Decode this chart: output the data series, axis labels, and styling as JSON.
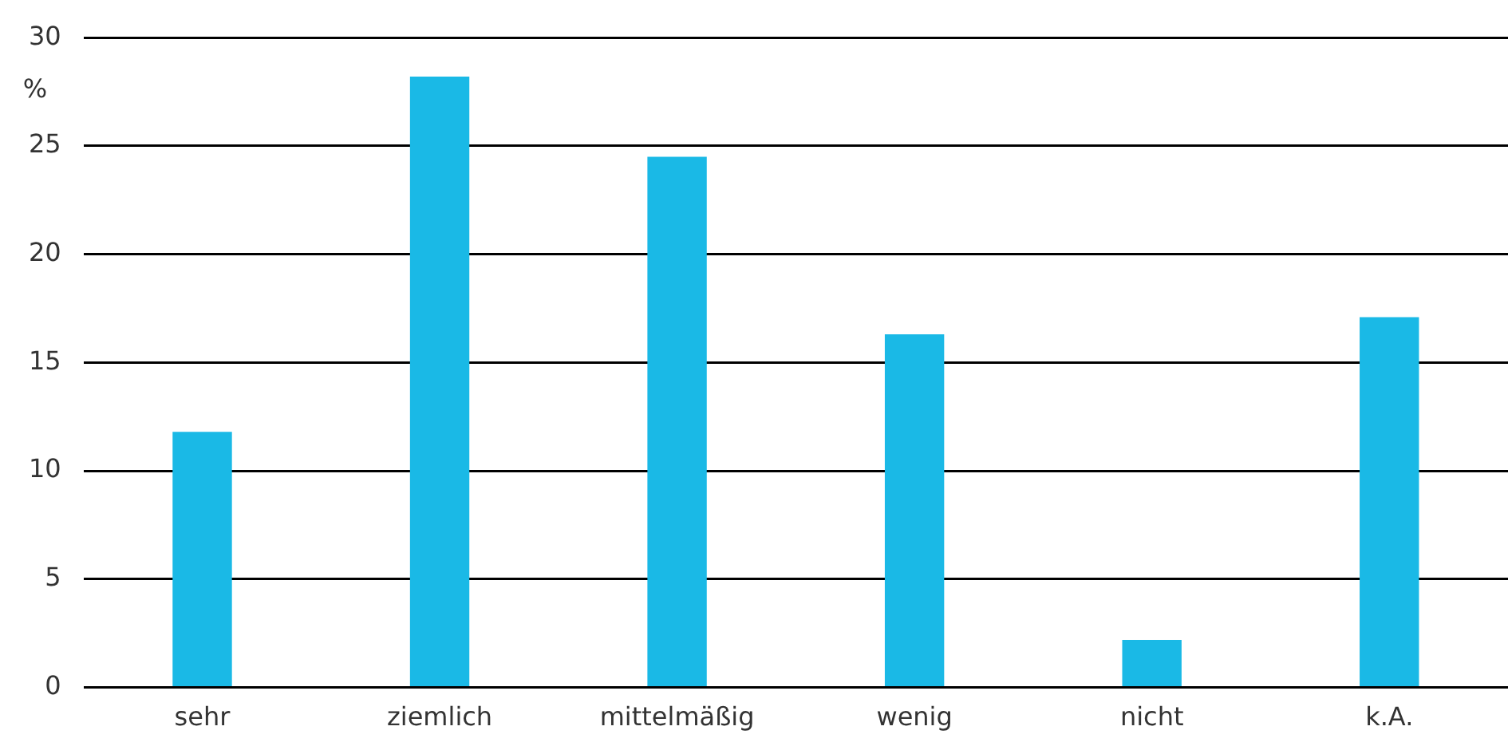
{
  "chart_data": {
    "type": "bar",
    "ylabel": "%",
    "categories": [
      "sehr",
      "ziemlich",
      "mittelmäßig",
      "wenig",
      "nicht",
      "k.A."
    ],
    "values": [
      11.8,
      28.2,
      24.5,
      16.3,
      2.2,
      17.1
    ],
    "color": "#1ab9e6",
    "ylim": [
      0,
      30
    ],
    "yticks": [
      0,
      5,
      10,
      15,
      20,
      25,
      30
    ],
    "grid": "y",
    "legend": false
  }
}
